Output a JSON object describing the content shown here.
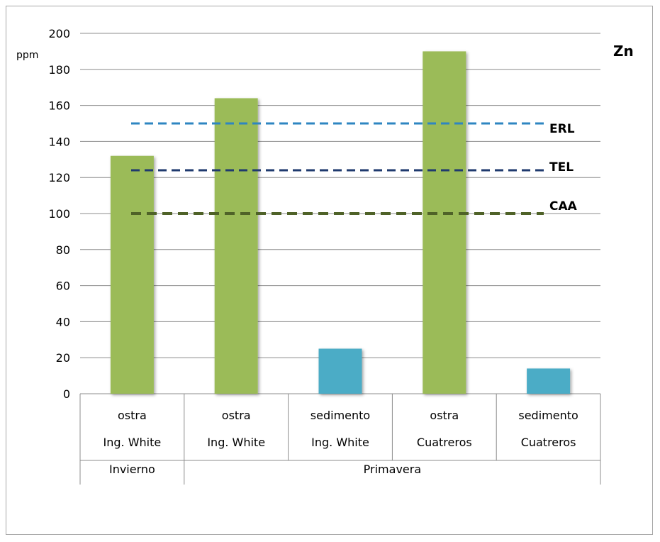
{
  "chart_data": {
    "type": "bar",
    "title": "Zn",
    "ylabel": "ppm",
    "ylim": [
      0,
      200
    ],
    "ystep": 20,
    "grid": true,
    "categories": [
      {
        "line1": "ostra",
        "line2": "Ing. White",
        "color": "#9bbb59"
      },
      {
        "line1": "ostra",
        "line2": "Ing. White",
        "color": "#9bbb59"
      },
      {
        "line1": "sedimento",
        "line2": "Ing. White",
        "color": "#4bacc6"
      },
      {
        "line1": "ostra",
        "line2": "Cuatreros",
        "color": "#9bbb59"
      },
      {
        "line1": "sedimento",
        "line2": "Cuatreros",
        "color": "#4bacc6"
      }
    ],
    "groups": [
      {
        "label": "Invierno",
        "span": 1
      },
      {
        "label": "Primavera",
        "span": 4
      }
    ],
    "values": [
      132,
      164,
      25,
      190,
      14
    ],
    "reference_lines": [
      {
        "name": "ERL",
        "value": 150,
        "color": "#2e86c1"
      },
      {
        "name": "TEL",
        "value": 124,
        "color": "#1f3a6e"
      },
      {
        "name": "CAA",
        "value": 100,
        "color": "#4f6228"
      }
    ]
  }
}
